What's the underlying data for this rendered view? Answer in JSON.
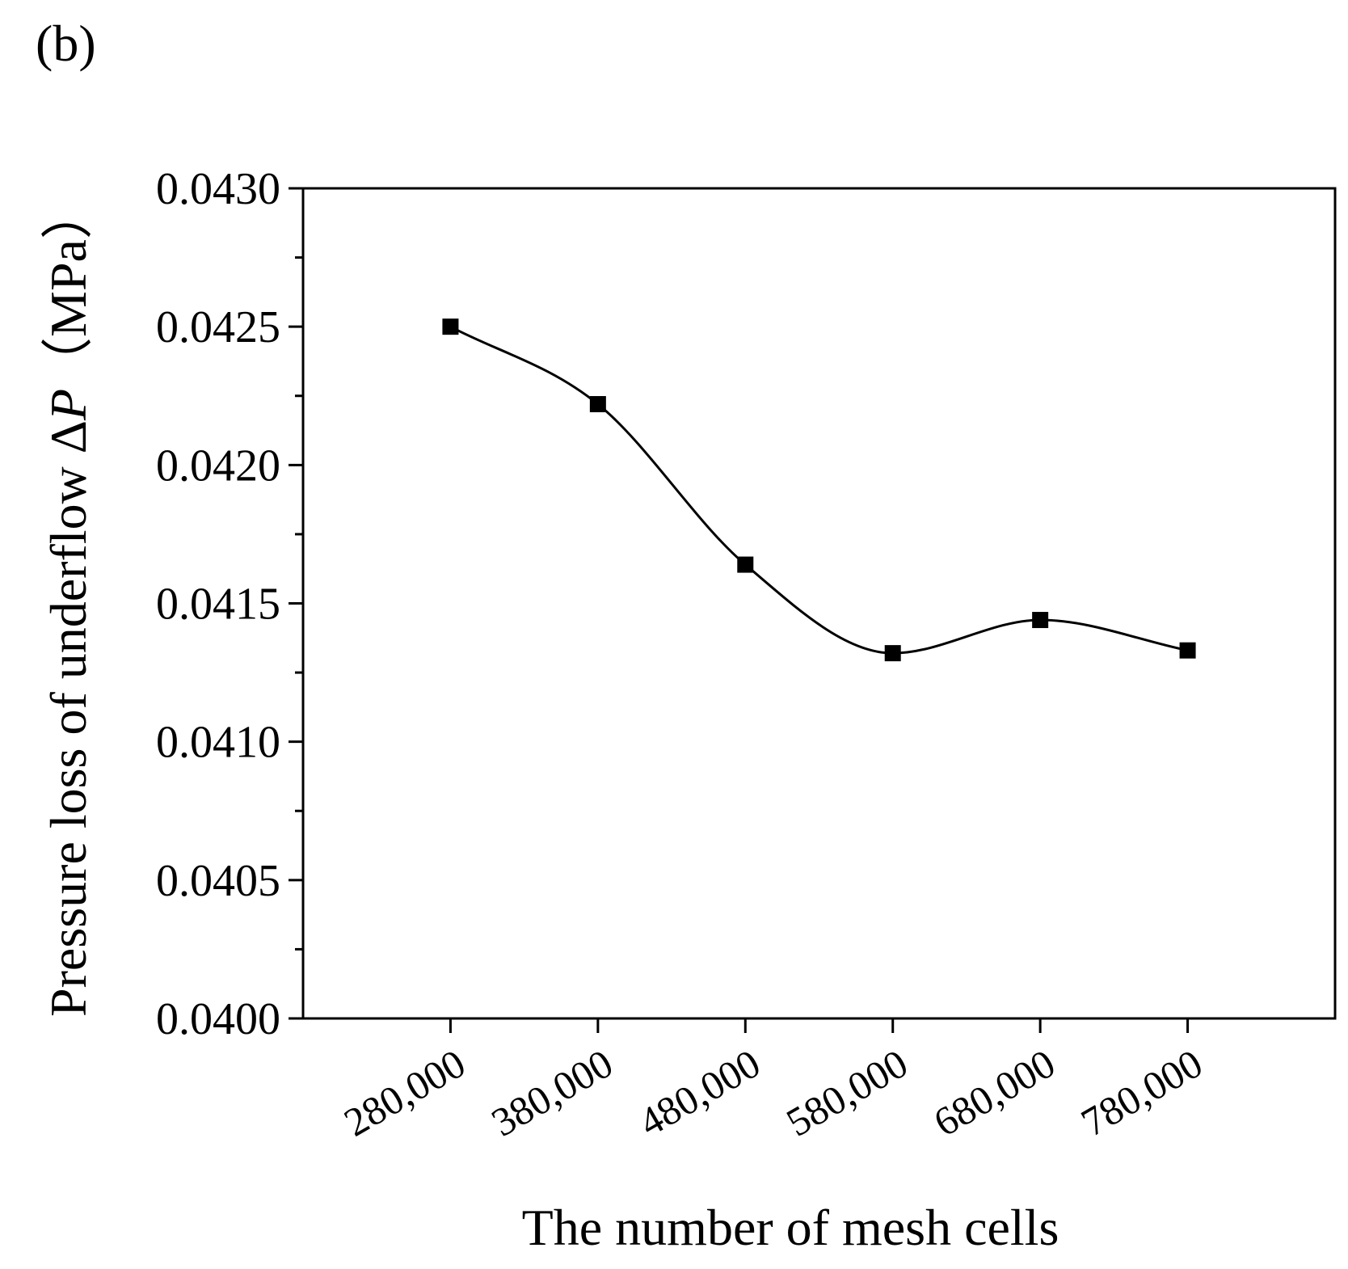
{
  "panel_label": "(b)",
  "chart_data": {
    "type": "line",
    "title": "",
    "xlabel": "The number of mesh cells",
    "ylabel_main": "Pressure loss of underflow Δ",
    "ylabel_var": "P",
    "ylabel_unit": "（MPa）",
    "categories": [
      "280,000",
      "380,000",
      "480,000",
      "580,000",
      "680,000",
      "780,000"
    ],
    "x": [
      280000,
      380000,
      480000,
      580000,
      680000,
      780000
    ],
    "xlim": [
      180000,
      880000
    ],
    "series": [
      {
        "name": "Pressure loss",
        "marker": "square",
        "smooth": true,
        "values": [
          0.0425,
          0.04222,
          0.04164,
          0.04132,
          0.04144,
          0.04133
        ]
      }
    ],
    "ylim": [
      0.04,
      0.043
    ],
    "yticks": [
      0.04,
      0.0405,
      0.041,
      0.0415,
      0.042,
      0.0425,
      0.043
    ],
    "ytick_labels": [
      "0.0400",
      "0.0405",
      "0.0410",
      "0.0415",
      "0.0420",
      "0.0425",
      "0.0430"
    ],
    "grid": false,
    "colors": {
      "line": "#000000",
      "marker": "#000000",
      "axis": "#000000"
    }
  }
}
